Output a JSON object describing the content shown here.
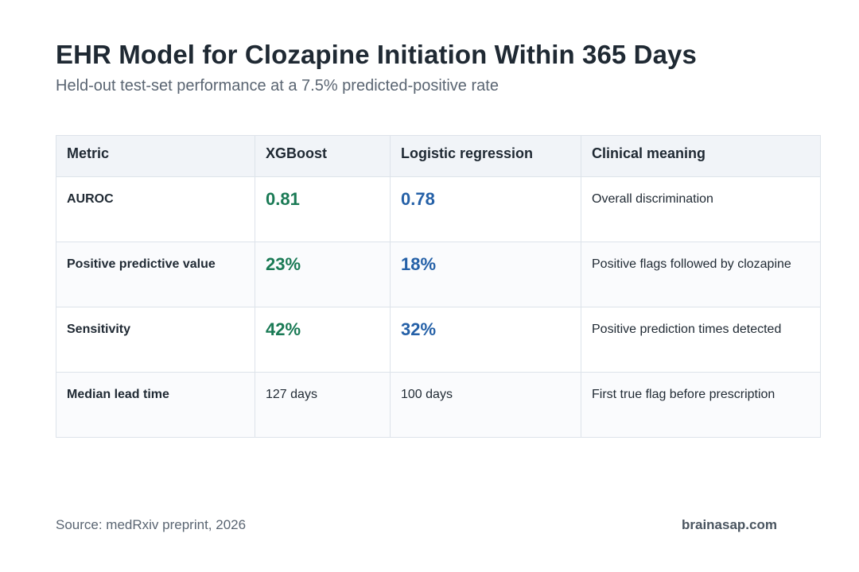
{
  "header": {
    "title": "EHR Model for Clozapine Initiation Within 365 Days",
    "subtitle": "Held-out test-set performance at a 7.5% predicted-positive rate"
  },
  "table": {
    "columns": [
      "Metric",
      "XGBoost",
      "Logistic regression",
      "Clinical meaning"
    ],
    "rows": [
      {
        "metric": "AUROC",
        "xgboost": "0.81",
        "logistic": "0.78",
        "meaning": "Overall discrimination"
      },
      {
        "metric": "Positive predictive value",
        "xgboost": "23%",
        "logistic": "18%",
        "meaning": "Positive flags followed by clozapine"
      },
      {
        "metric": "Sensitivity",
        "xgboost": "42%",
        "logistic": "32%",
        "meaning": "Positive prediction times detected"
      },
      {
        "metric": "Median lead time",
        "xgboost": "127 days",
        "logistic": "100 days",
        "meaning": "First true flag before prescription"
      }
    ]
  },
  "colors": {
    "xgboost_value": "#1a7a55",
    "logistic_value": "#2460a7",
    "header_background": "#f1f4f8"
  },
  "footer": {
    "source": "Source: medRxiv preprint, 2026",
    "brand": "brainasap.com"
  }
}
